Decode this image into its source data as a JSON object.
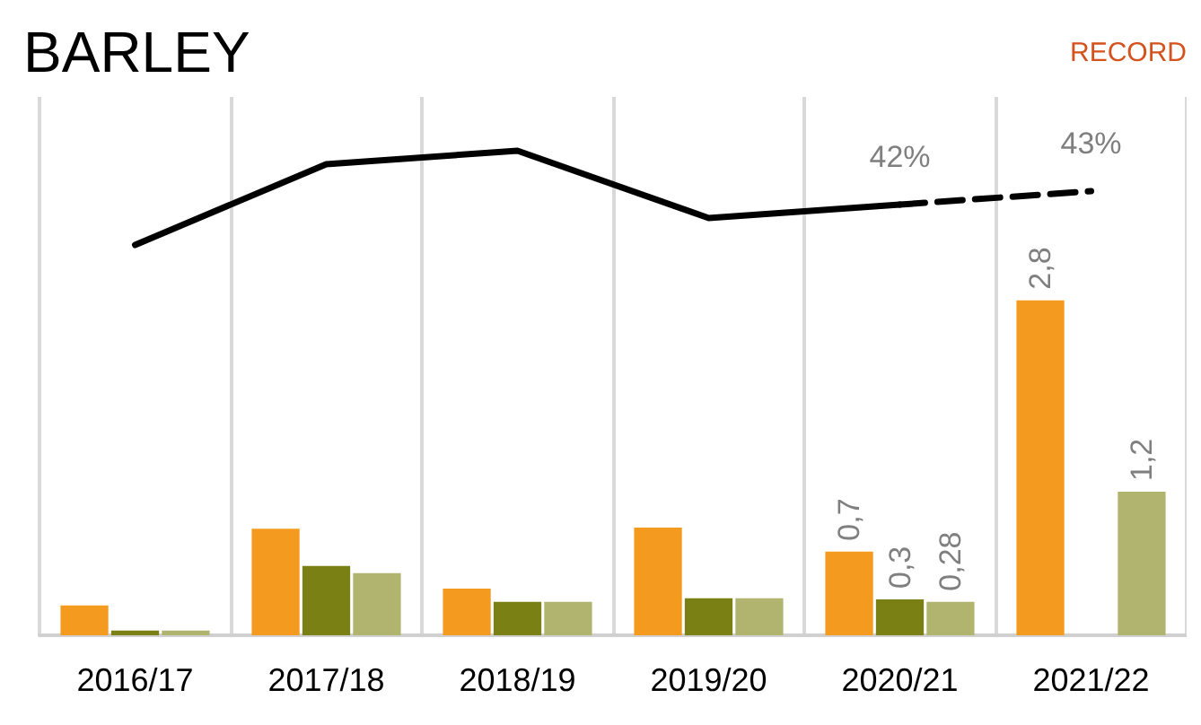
{
  "chart_data": {
    "type": "bar",
    "title": "BARLEY",
    "annotations": [
      "RECORD"
    ],
    "categories": [
      "2016/17",
      "2017/18",
      "2018/19",
      "2019/20",
      "2020/21",
      "2021/22"
    ],
    "series": [
      {
        "color": "#f39a1f",
        "values": [
          0.25,
          0.89,
          0.39,
          0.9,
          0.7,
          2.8
        ],
        "value_labels": [
          null,
          null,
          null,
          null,
          "0,7",
          "2,8"
        ]
      },
      {
        "color": "#7b8014",
        "values": [
          0.04,
          0.58,
          0.28,
          0.31,
          0.3,
          null
        ],
        "value_labels": [
          null,
          null,
          null,
          null,
          "0,3",
          null
        ]
      },
      {
        "color": "#b0b46f",
        "values": [
          0.04,
          0.52,
          0.28,
          0.31,
          0.28,
          1.2
        ],
        "value_labels": [
          null,
          null,
          null,
          null,
          "0,28",
          "1,2"
        ]
      },
      {
        "type": "line",
        "axis": "y2",
        "color": "#000000",
        "line_style": "solid",
        "values": [
          39,
          45,
          46,
          41,
          42,
          null
        ]
      },
      {
        "type": "line",
        "axis": "y2",
        "color": "#000000",
        "line_style": "dashed",
        "values": [
          null,
          null,
          null,
          null,
          42,
          43
        ],
        "value_labels": [
          null,
          null,
          null,
          null,
          "42%",
          "43%"
        ]
      }
    ],
    "ylim": [
      0,
      4.5
    ],
    "y2lim": [
      10,
      50
    ],
    "grid": "x",
    "tick_labels": "x",
    "marker": "none"
  }
}
